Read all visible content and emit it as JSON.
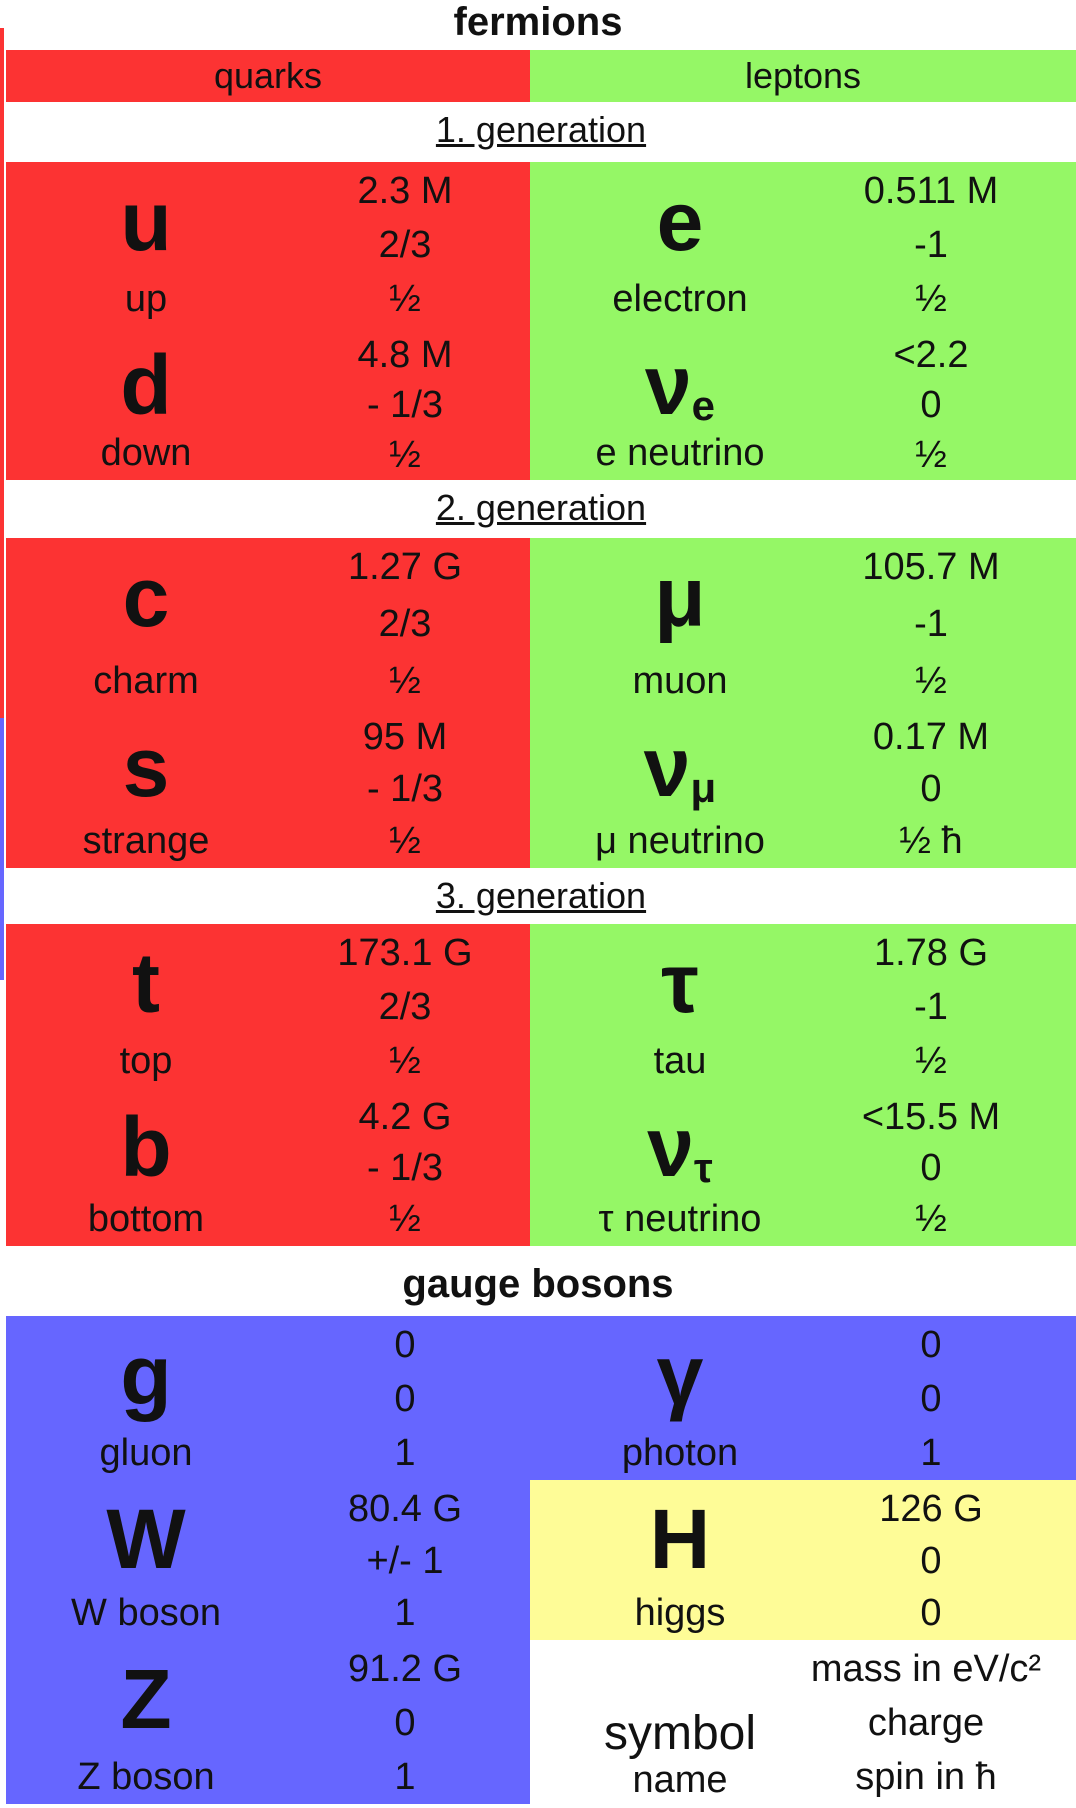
{
  "headings": {
    "fermions": "fermions",
    "quarks": "quarks",
    "leptons": "leptons",
    "gen1": "1. generation",
    "gen2": "2. generation",
    "gen3": "3. generation",
    "gauge_bosons": "gauge bosons"
  },
  "colors": {
    "quark_red": "#fc3333",
    "lepton_green": "#95f766",
    "boson_blue": "#6666ff",
    "higgs_yellow": "#fefc97"
  },
  "particles": {
    "up": {
      "symbol": "u",
      "sub": "",
      "name": "up",
      "mass": "2.3 M",
      "charge": "2/3",
      "spin": "½"
    },
    "electron": {
      "symbol": "e",
      "sub": "",
      "name": "electron",
      "mass": "0.511 M",
      "charge": "-1",
      "spin": "½"
    },
    "down": {
      "symbol": "d",
      "sub": "",
      "name": "down",
      "mass": "4.8 M",
      "charge": "- 1/3",
      "spin": "½"
    },
    "e_neutrino": {
      "symbol": "ν",
      "sub": "e",
      "name": "e neutrino",
      "mass": "<2.2",
      "charge": "0",
      "spin": "½"
    },
    "charm": {
      "symbol": "c",
      "sub": "",
      "name": "charm",
      "mass": "1.27 G",
      "charge": "2/3",
      "spin": "½"
    },
    "muon": {
      "symbol": "μ",
      "sub": "",
      "name": "muon",
      "mass": "105.7 M",
      "charge": "-1",
      "spin": "½"
    },
    "strange": {
      "symbol": "s",
      "sub": "",
      "name": "strange",
      "mass": "95 M",
      "charge": "- 1/3",
      "spin": "½"
    },
    "mu_neutrino": {
      "symbol": "ν",
      "sub": "μ",
      "name": "μ neutrino",
      "mass": "0.17 M",
      "charge": "0",
      "spin": "½ ħ"
    },
    "top": {
      "symbol": "t",
      "sub": "",
      "name": "top",
      "mass": "173.1 G",
      "charge": "2/3",
      "spin": "½"
    },
    "tau": {
      "symbol": "τ",
      "sub": "",
      "name": "tau",
      "mass": "1.78 G",
      "charge": "-1",
      "spin": "½"
    },
    "bottom": {
      "symbol": "b",
      "sub": "",
      "name": "bottom",
      "mass": "4.2 G",
      "charge": "- 1/3",
      "spin": "½"
    },
    "tau_neutrino": {
      "symbol": "ν",
      "sub": "τ",
      "name": "τ neutrino",
      "mass": "<15.5 M",
      "charge": "0",
      "spin": "½"
    },
    "gluon": {
      "symbol": "g",
      "sub": "",
      "name": "gluon",
      "mass": "0",
      "charge": "0",
      "spin": "1"
    },
    "photon": {
      "symbol": "γ",
      "sub": "",
      "name": "photon",
      "mass": "0",
      "charge": "0",
      "spin": "1"
    },
    "w_boson": {
      "symbol": "W",
      "sub": "",
      "name": "W boson",
      "mass": "80.4 G",
      "charge": "+/- 1",
      "spin": "1"
    },
    "higgs": {
      "symbol": "H",
      "sub": "",
      "name": "higgs",
      "mass": "126 G",
      "charge": "0",
      "spin": "0"
    },
    "z_boson": {
      "symbol": "Z",
      "sub": "",
      "name": "Z boson",
      "mass": "91.2 G",
      "charge": "0",
      "spin": "1"
    }
  },
  "legend": {
    "symbol": "symbol",
    "name": "name",
    "mass": "mass in eV/c²",
    "charge": "charge",
    "spin": "spin in ħ"
  }
}
